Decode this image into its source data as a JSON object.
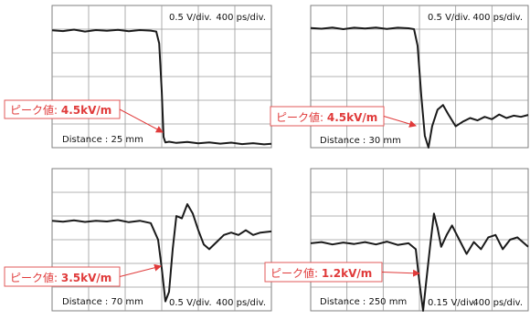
{
  "colors": {
    "callout": "#e03a3a",
    "wave": "#1a1a1a",
    "grid": "#9a9a9a"
  },
  "chart_data": [
    {
      "type": "line",
      "title": "",
      "divisions": {
        "x": 6,
        "y": 6
      },
      "volts_per_div": 0.5,
      "ps_per_div": 400,
      "scale_v": "0.5 V/div.",
      "scale_t": "400 ps/div.",
      "distance": "Distance : 25 mm",
      "peak_label": "ピーク値: ",
      "peak_value": "4.5kV/m",
      "step_div": 3.0,
      "series": [
        {
          "x_div": [
            0,
            0.3,
            0.6,
            0.9,
            1.2,
            1.5,
            1.8,
            2.1,
            2.4,
            2.7,
            2.85,
            2.93,
            3.0,
            3.05,
            3.1,
            3.2,
            3.4,
            3.7,
            4.0,
            4.3,
            4.6,
            4.9,
            5.2,
            5.5,
            5.8,
            6.0
          ],
          "y_div": [
            4.95,
            4.92,
            4.98,
            4.9,
            4.96,
            4.93,
            4.97,
            4.91,
            4.96,
            4.94,
            4.9,
            4.4,
            2.4,
            0.45,
            0.22,
            0.25,
            0.2,
            0.24,
            0.18,
            0.22,
            0.17,
            0.21,
            0.15,
            0.19,
            0.14,
            0.16
          ]
        }
      ]
    },
    {
      "type": "line",
      "title": "",
      "divisions": {
        "x": 6,
        "y": 6
      },
      "volts_per_div": 0.5,
      "ps_per_div": 400,
      "scale_v": "0.5 V/div.",
      "scale_t": "400 ps/div.",
      "distance": "Distance : 30 mm",
      "peak_label": "ピーク値: ",
      "peak_value": "4.5kV/m",
      "series": [
        {
          "x_div": [
            0,
            0.3,
            0.6,
            0.9,
            1.2,
            1.5,
            1.8,
            2.1,
            2.4,
            2.7,
            2.85,
            2.95,
            3.05,
            3.15,
            3.25,
            3.35,
            3.5,
            3.65,
            3.8,
            4.0,
            4.2,
            4.4,
            4.6,
            4.8,
            5.0,
            5.2,
            5.4,
            5.6,
            5.8,
            6.0
          ],
          "y_div": [
            5.05,
            5.02,
            5.07,
            5.0,
            5.06,
            5.03,
            5.07,
            5.01,
            5.06,
            5.04,
            5.0,
            4.3,
            2.2,
            0.5,
            0.0,
            0.9,
            1.6,
            1.8,
            1.4,
            0.9,
            1.1,
            1.25,
            1.15,
            1.3,
            1.2,
            1.4,
            1.25,
            1.35,
            1.3,
            1.38
          ]
        }
      ]
    },
    {
      "type": "line",
      "title": "",
      "divisions": {
        "x": 6,
        "y": 6
      },
      "volts_per_div": 0.5,
      "ps_per_div": 400,
      "scale_v": "0.5 V/div.",
      "scale_t": "400 ps/div.",
      "distance": "Distance : 70 mm",
      "peak_label": "ピーク値: ",
      "peak_value": "3.5kV/m",
      "series": [
        {
          "x_div": [
            0,
            0.3,
            0.6,
            0.9,
            1.2,
            1.5,
            1.8,
            2.1,
            2.4,
            2.7,
            2.9,
            3.0,
            3.1,
            3.2,
            3.3,
            3.4,
            3.55,
            3.7,
            3.85,
            4.0,
            4.15,
            4.3,
            4.5,
            4.7,
            4.9,
            5.1,
            5.3,
            5.5,
            5.7,
            6.0
          ],
          "y_div": [
            3.8,
            3.76,
            3.82,
            3.75,
            3.8,
            3.77,
            3.83,
            3.74,
            3.8,
            3.7,
            3.0,
            1.8,
            0.4,
            0.8,
            2.6,
            4.0,
            3.9,
            4.5,
            4.1,
            3.4,
            2.8,
            2.6,
            2.9,
            3.2,
            3.3,
            3.2,
            3.4,
            3.2,
            3.3,
            3.35
          ]
        }
      ]
    },
    {
      "type": "line",
      "title": "",
      "divisions": {
        "x": 6,
        "y": 6
      },
      "volts_per_div": 0.15,
      "ps_per_div": 400,
      "scale_v": "0.15 V/div.",
      "scale_t": "400 ps/div.",
      "distance": "Distance : 250 mm",
      "peak_label": "ピーク値: ",
      "peak_value": "1.2kV/m",
      "series": [
        {
          "x_div": [
            0,
            0.3,
            0.6,
            0.9,
            1.2,
            1.5,
            1.8,
            2.1,
            2.4,
            2.7,
            2.9,
            3.0,
            3.1,
            3.2,
            3.3,
            3.4,
            3.5,
            3.6,
            3.75,
            3.9,
            4.1,
            4.3,
            4.5,
            4.7,
            4.9,
            5.1,
            5.3,
            5.5,
            5.7,
            6.0
          ],
          "y_div": [
            2.85,
            2.9,
            2.8,
            2.88,
            2.82,
            2.9,
            2.8,
            2.92,
            2.78,
            2.85,
            2.6,
            1.2,
            0.0,
            1.4,
            2.8,
            4.1,
            3.5,
            2.7,
            3.2,
            3.6,
            3.0,
            2.4,
            2.9,
            2.6,
            3.1,
            3.2,
            2.6,
            3.0,
            3.1,
            2.7
          ]
        }
      ]
    }
  ]
}
